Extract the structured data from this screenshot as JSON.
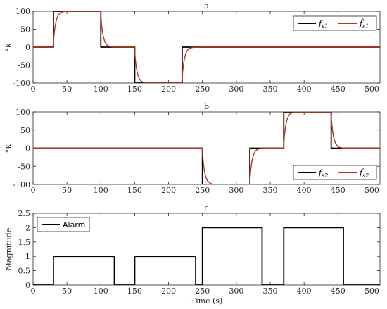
{
  "chart_data": [
    {
      "type": "line",
      "title": "a",
      "xlabel": "",
      "ylabel": "°K",
      "xlim": [
        0,
        512
      ],
      "ylim": [
        -100,
        100
      ],
      "xticks": [
        0,
        50,
        100,
        150,
        200,
        250,
        300,
        350,
        400,
        450,
        500
      ],
      "yticks": [
        -100,
        -50,
        0,
        50,
        100
      ],
      "grid": false,
      "legend_position": "top-right",
      "series": [
        {
          "name": "f_s1",
          "legend_label": "f",
          "legend_sub": "s1",
          "legend_hat": false,
          "color": "#000000",
          "kind": "step",
          "x": [
            0,
            30,
            30,
            100,
            100,
            150,
            150,
            220,
            220,
            512
          ],
          "y": [
            0,
            0,
            100,
            100,
            0,
            0,
            -100,
            -100,
            0,
            0
          ]
        },
        {
          "name": "f̂_s1",
          "legend_label": "f̂",
          "legend_sub": "s1",
          "legend_hat": true,
          "color": "#b5331a",
          "kind": "first_order",
          "tau": 3.5,
          "steps": [
            [
              0,
              0
            ],
            [
              30,
              100
            ],
            [
              100,
              0
            ],
            [
              150,
              -100
            ],
            [
              220,
              0
            ]
          ],
          "x_end": 512
        }
      ]
    },
    {
      "type": "line",
      "title": "b",
      "xlabel": "",
      "ylabel": "°K",
      "xlim": [
        0,
        512
      ],
      "ylim": [
        -100,
        100
      ],
      "xticks": [
        0,
        50,
        100,
        150,
        200,
        250,
        300,
        350,
        400,
        450,
        500
      ],
      "yticks": [
        -100,
        -50,
        0,
        50,
        100
      ],
      "grid": false,
      "legend_position": "bottom-right",
      "series": [
        {
          "name": "f_s2",
          "legend_label": "f",
          "legend_sub": "s2",
          "legend_hat": false,
          "color": "#000000",
          "kind": "step",
          "x": [
            0,
            250,
            250,
            320,
            320,
            370,
            370,
            440,
            440,
            512
          ],
          "y": [
            0,
            0,
            -100,
            -100,
            0,
            0,
            100,
            100,
            0,
            0
          ]
        },
        {
          "name": "f̂_s2",
          "legend_label": "f̂",
          "legend_sub": "s2",
          "legend_hat": true,
          "color": "#b5331a",
          "kind": "first_order",
          "tau": 3.5,
          "steps": [
            [
              0,
              0
            ],
            [
              250,
              -100
            ],
            [
              320,
              0
            ],
            [
              370,
              100
            ],
            [
              440,
              0
            ]
          ],
          "x_end": 512
        }
      ]
    },
    {
      "type": "line",
      "title": "c",
      "xlabel": "Time (s)",
      "ylabel": "Magnitude",
      "xlim": [
        0,
        512
      ],
      "ylim": [
        0,
        2.5
      ],
      "xticks": [
        0,
        50,
        100,
        150,
        200,
        250,
        300,
        350,
        400,
        450,
        500
      ],
      "yticks": [
        0,
        0.5,
        1,
        1.5,
        2,
        2.5
      ],
      "grid": false,
      "legend_position": "top-left",
      "series": [
        {
          "name": "Alarm",
          "legend_label": "Alarm",
          "legend_sub": "",
          "legend_hat": false,
          "color": "#000000",
          "kind": "step",
          "x": [
            0,
            30,
            30,
            120,
            120,
            150,
            150,
            240,
            240,
            250,
            250,
            338,
            338,
            370,
            370,
            458,
            458,
            512
          ],
          "y": [
            0,
            0,
            1,
            1,
            0,
            0,
            1,
            1,
            0,
            0,
            2,
            2,
            0,
            0,
            2,
            2,
            0,
            0
          ]
        }
      ]
    }
  ]
}
